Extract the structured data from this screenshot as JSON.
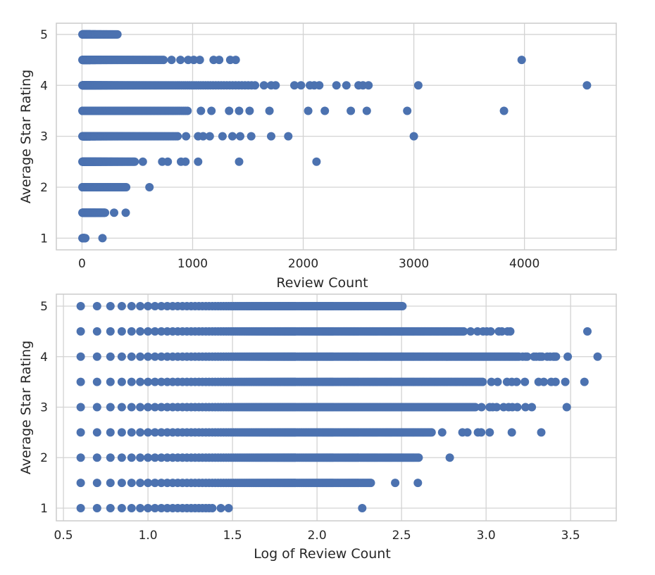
{
  "chart_data": [
    {
      "type": "scatter",
      "title": "",
      "xlabel": "Review Count",
      "ylabel": "Average Star Rating",
      "xlim": [
        -232,
        4830
      ],
      "ylim": [
        0.77,
        5.22
      ],
      "xticks": [
        0,
        1000,
        2000,
        3000,
        4000
      ],
      "xtick_labels": [
        "0",
        "1000",
        "2000",
        "3000",
        "4000"
      ],
      "yticks": [
        1,
        2,
        3,
        4,
        5
      ],
      "ytick_labels": [
        "1",
        "2",
        "3",
        "4",
        "5"
      ],
      "grid": true,
      "x_transform": "none",
      "color": "#4C72B0",
      "series": [
        {
          "rating": 5.0,
          "dense_range": [
            4,
            320
          ],
          "outliers": []
        },
        {
          "rating": 4.5,
          "dense_range": [
            4,
            740
          ],
          "outliers": [
            810,
            890,
            960,
            1010,
            1065,
            1190,
            1240,
            1340,
            1390,
            3975
          ]
        },
        {
          "rating": 4.0,
          "dense_range": [
            4,
            1580
          ],
          "outliers": [
            1645,
            1710,
            1750,
            1920,
            1980,
            2060,
            2100,
            2145,
            2300,
            2390,
            2500,
            2540,
            2590,
            3040,
            4565
          ]
        },
        {
          "rating": 3.5,
          "dense_range": [
            4,
            970
          ],
          "outliers": [
            1075,
            1170,
            1330,
            1420,
            1515,
            1695,
            2045,
            2195,
            2430,
            2575,
            2940,
            3815
          ]
        },
        {
          "rating": 3.0,
          "dense_range": [
            4,
            870
          ],
          "outliers": [
            940,
            1050,
            1095,
            1155,
            1270,
            1360,
            1430,
            1530,
            1710,
            1865,
            3000
          ]
        },
        {
          "rating": 2.5,
          "dense_range": [
            4,
            485
          ],
          "outliers": [
            550,
            725,
            775,
            895,
            935,
            1050,
            1420,
            2120
          ]
        },
        {
          "rating": 2.0,
          "dense_range": [
            4,
            400
          ],
          "outliers": [
            610
          ]
        },
        {
          "rating": 1.5,
          "dense_range": [
            4,
            210
          ],
          "outliers": [
            290,
            395
          ]
        },
        {
          "rating": 1.0,
          "dense_range": [
            4,
            24
          ],
          "outliers": [
            27,
            30,
            185
          ]
        }
      ]
    },
    {
      "type": "scatter",
      "title": "",
      "xlabel": "Log of Review Count",
      "ylabel": "Average Star Rating",
      "xlim": [
        0.458,
        3.77
      ],
      "ylim": [
        0.749,
        5.237
      ],
      "xticks": [
        0.5,
        1.0,
        1.5,
        2.0,
        2.5,
        3.0,
        3.5
      ],
      "xtick_labels": [
        "0.5",
        "1.0",
        "1.5",
        "2.0",
        "2.5",
        "3.0",
        "3.5"
      ],
      "yticks": [
        1,
        2,
        3,
        4,
        5
      ],
      "ytick_labels": [
        "1",
        "2",
        "3",
        "4",
        "5"
      ],
      "grid": true,
      "x_transform": "log10 of review counts from the first chart",
      "color": "#4C72B0"
    }
  ]
}
